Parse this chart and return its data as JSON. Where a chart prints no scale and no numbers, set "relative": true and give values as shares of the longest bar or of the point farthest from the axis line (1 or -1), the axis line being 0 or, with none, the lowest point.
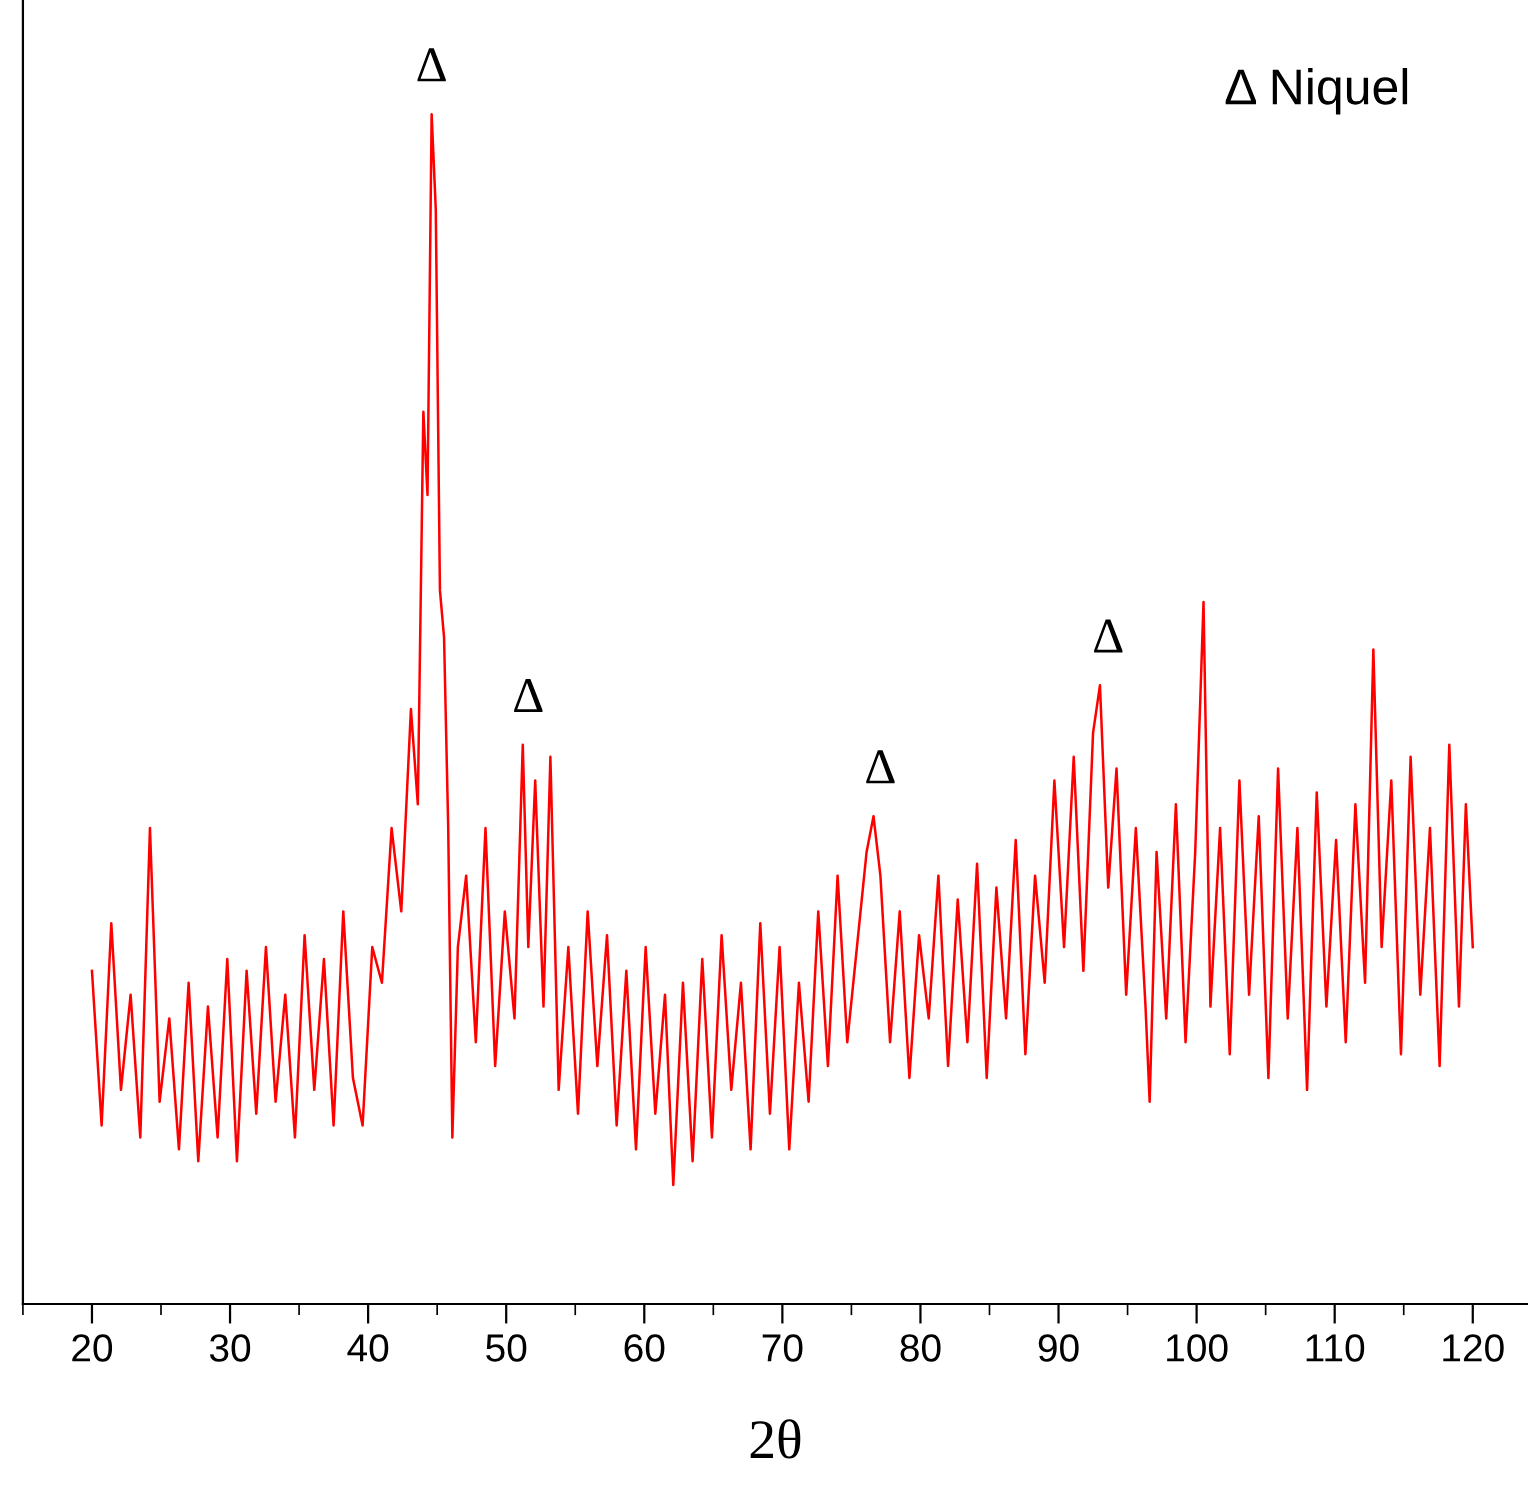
{
  "chart_data": {
    "type": "line",
    "relative": true,
    "xlabel": "2θ",
    "x": [
      20,
      20.7,
      21.4,
      22.1,
      22.8,
      23.5,
      24.2,
      24.9,
      25.6,
      26.3,
      27,
      27.7,
      28.4,
      29.1,
      29.8,
      30.5,
      31.2,
      31.9,
      32.6,
      33.3,
      34,
      34.7,
      35.4,
      36.1,
      36.8,
      37.5,
      38.2,
      38.9,
      39.6,
      40.3,
      41,
      41.7,
      42.4,
      43.1,
      43.6,
      44,
      44.3,
      44.6,
      44.9,
      45.2,
      45.5,
      45.8,
      46.1,
      46.5,
      47.1,
      47.8,
      48.5,
      49.2,
      49.9,
      50.6,
      51.2,
      51.6,
      52.1,
      52.7,
      53.2,
      53.8,
      54.5,
      55.2,
      55.9,
      56.6,
      57.3,
      58,
      58.7,
      59.4,
      60.1,
      60.8,
      61.5,
      62.1,
      62.8,
      63.5,
      64.2,
      64.9,
      65.6,
      66.3,
      67,
      67.7,
      68.4,
      69.1,
      69.8,
      70.5,
      71.2,
      71.9,
      72.6,
      73.3,
      74,
      74.7,
      75.4,
      76.1,
      76.6,
      77.1,
      77.8,
      78.5,
      79.2,
      79.9,
      80.6,
      81.3,
      82,
      82.7,
      83.4,
      84.1,
      84.8,
      85.5,
      86.2,
      86.9,
      87.6,
      88.3,
      89,
      89.7,
      90.4,
      91.1,
      91.8,
      92.5,
      93,
      93.6,
      94.2,
      94.9,
      95.6,
      96.3,
      96.6,
      97.1,
      97.8,
      98.5,
      99.2,
      99.9,
      100.5,
      101,
      101.7,
      102.4,
      103.1,
      103.8,
      104.5,
      105.2,
      105.9,
      106.6,
      107.3,
      108,
      108.7,
      109.4,
      110.1,
      110.8,
      111.5,
      112.2,
      112.8,
      113.4,
      114.1,
      114.8,
      115.5,
      116.2,
      116.9,
      117.6,
      118.3,
      119,
      119.5,
      120
    ],
    "series": [
      {
        "color": "#ff0000",
        "values": [
          0.28,
          0.15,
          0.32,
          0.18,
          0.26,
          0.14,
          0.4,
          0.17,
          0.24,
          0.13,
          0.27,
          0.12,
          0.25,
          0.14,
          0.29,
          0.12,
          0.28,
          0.16,
          0.3,
          0.17,
          0.26,
          0.14,
          0.31,
          0.18,
          0.29,
          0.15,
          0.33,
          0.19,
          0.15,
          0.3,
          0.27,
          0.4,
          0.33,
          0.5,
          0.42,
          0.75,
          0.68,
          1.0,
          0.92,
          0.6,
          0.56,
          0.4,
          0.14,
          0.3,
          0.36,
          0.22,
          0.4,
          0.2,
          0.33,
          0.24,
          0.47,
          0.3,
          0.44,
          0.25,
          0.46,
          0.18,
          0.3,
          0.16,
          0.33,
          0.2,
          0.31,
          0.15,
          0.28,
          0.13,
          0.3,
          0.16,
          0.26,
          0.1,
          0.27,
          0.12,
          0.29,
          0.14,
          0.31,
          0.18,
          0.27,
          0.13,
          0.32,
          0.16,
          0.3,
          0.13,
          0.27,
          0.17,
          0.33,
          0.2,
          0.36,
          0.22,
          0.3,
          0.38,
          0.41,
          0.36,
          0.22,
          0.33,
          0.19,
          0.31,
          0.24,
          0.36,
          0.2,
          0.34,
          0.22,
          0.37,
          0.19,
          0.35,
          0.24,
          0.39,
          0.21,
          0.36,
          0.27,
          0.44,
          0.3,
          0.46,
          0.28,
          0.48,
          0.52,
          0.35,
          0.45,
          0.26,
          0.4,
          0.25,
          0.17,
          0.38,
          0.24,
          0.42,
          0.22,
          0.38,
          0.59,
          0.25,
          0.4,
          0.21,
          0.44,
          0.26,
          0.41,
          0.19,
          0.45,
          0.24,
          0.4,
          0.18,
          0.43,
          0.25,
          0.39,
          0.22,
          0.42,
          0.27,
          0.55,
          0.3,
          0.44,
          0.21,
          0.46,
          0.26,
          0.4,
          0.2,
          0.47,
          0.25,
          0.42,
          0.3
        ]
      }
    ],
    "xlim": [
      15,
      124
    ],
    "xticks": [
      20,
      30,
      40,
      50,
      60,
      70,
      80,
      90,
      100,
      110,
      120
    ],
    "tick_labels": "x",
    "grid": false,
    "marker": "none",
    "line_style": "solid",
    "annotations": [
      {
        "text": "Δ",
        "x": 44.6,
        "y": 1.0
      },
      {
        "text": "Δ",
        "x": 51.6,
        "y": 0.47
      },
      {
        "text": "Δ",
        "x": 77.1,
        "y": 0.41
      },
      {
        "text": "Δ",
        "x": 93.6,
        "y": 0.52
      },
      "Δ Niquel"
    ]
  }
}
